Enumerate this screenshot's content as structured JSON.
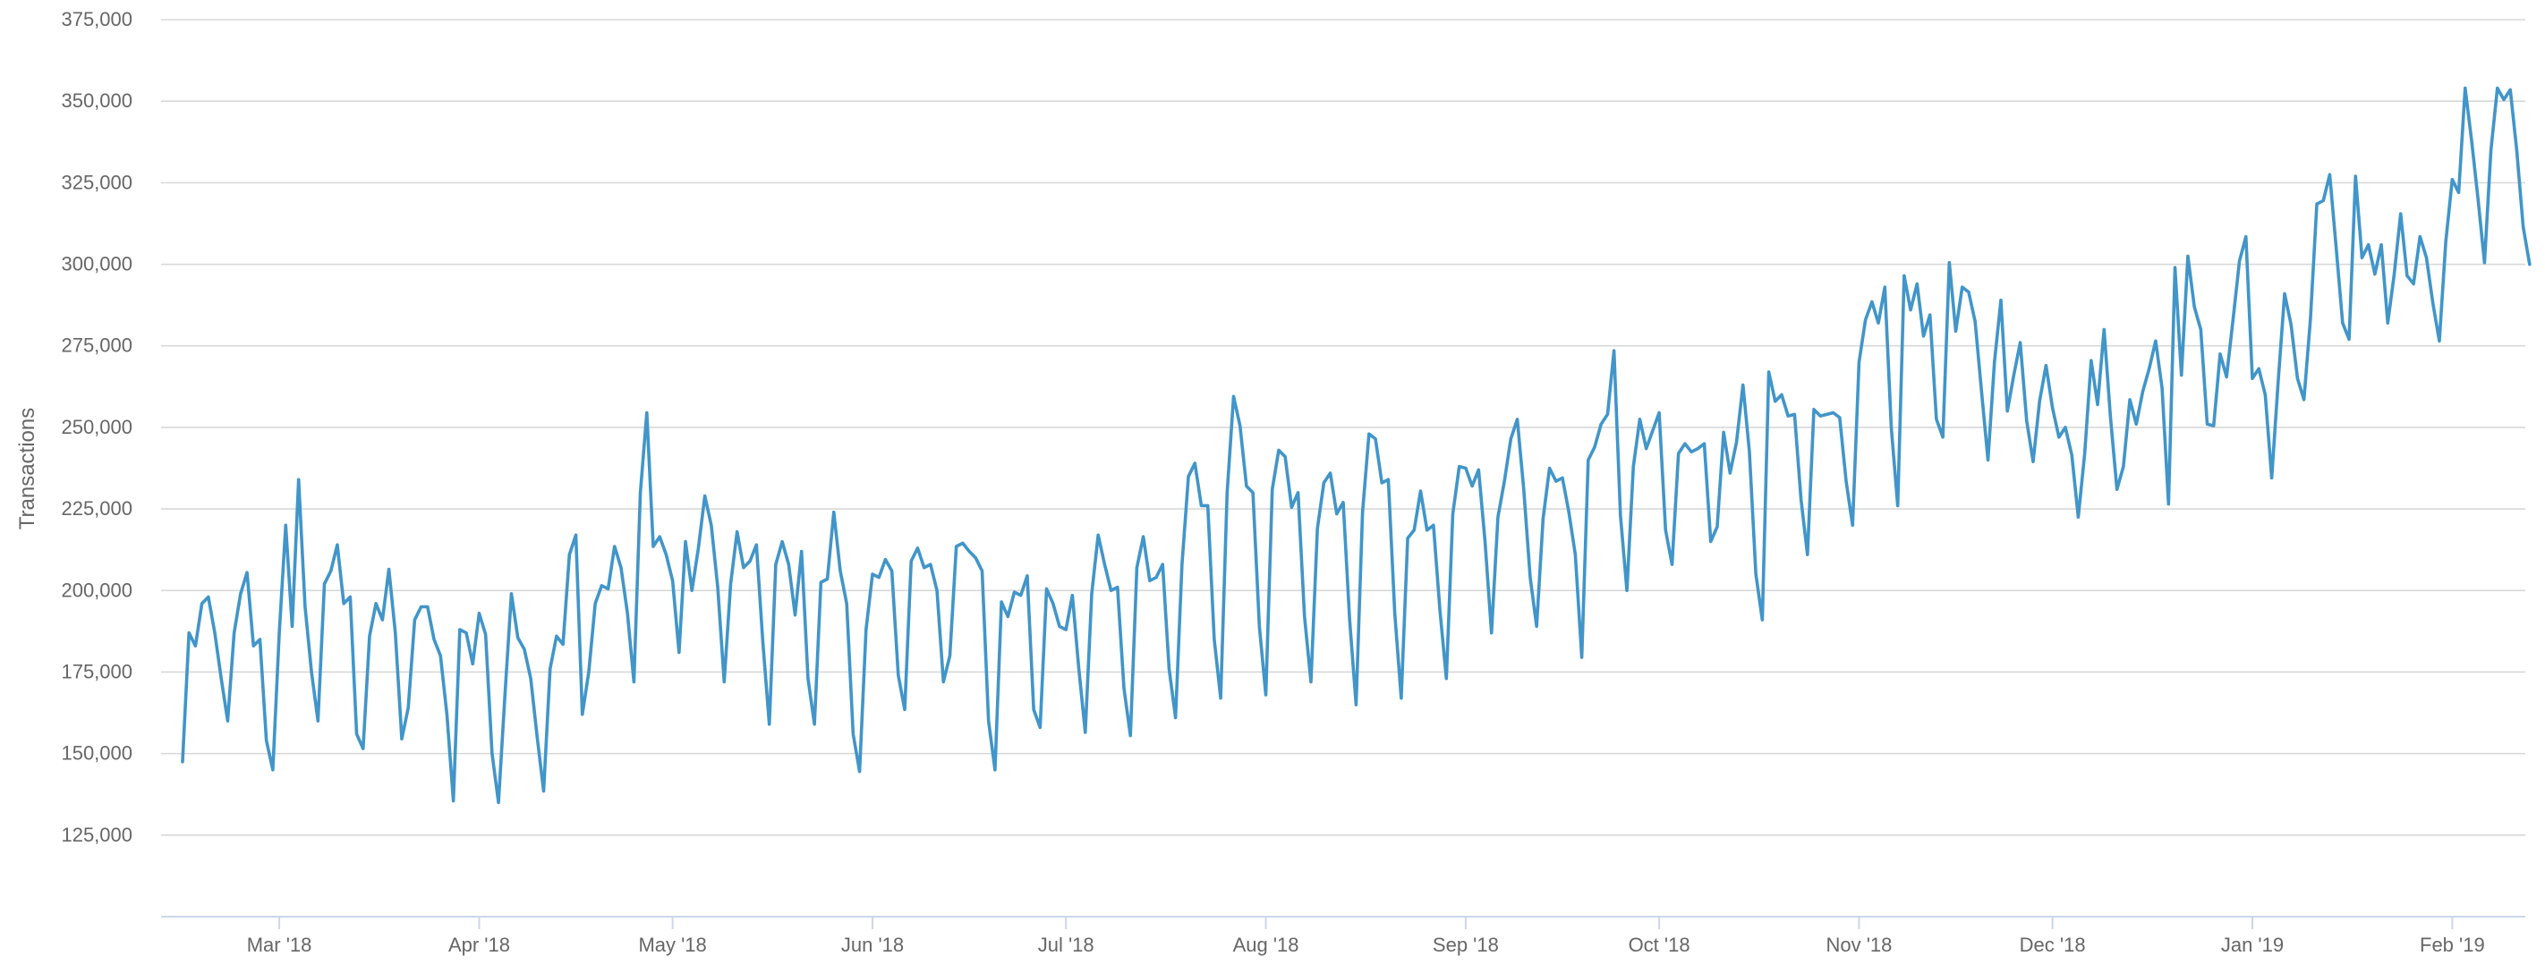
{
  "chart_data": {
    "type": "line",
    "ylabel": "Transactions",
    "xlabel": "",
    "ylim": [
      100000,
      375000
    ],
    "x_start": "2018-02-14",
    "x_end": "2019-02-09",
    "grid": true,
    "legend": "none",
    "y_ticks": [
      125000,
      150000,
      175000,
      200000,
      225000,
      250000,
      275000,
      300000,
      325000,
      350000,
      375000
    ],
    "y_tick_labels": [
      "125,000",
      "150,000",
      "175,000",
      "200,000",
      "225,000",
      "250,000",
      "275,000",
      "300,000",
      "325,000",
      "350,000",
      "375,000"
    ],
    "x_ticks": [
      "2018-03-01",
      "2018-04-01",
      "2018-05-01",
      "2018-06-01",
      "2018-07-01",
      "2018-08-01",
      "2018-09-01",
      "2018-10-01",
      "2018-11-01",
      "2018-12-01",
      "2019-01-01",
      "2019-02-01"
    ],
    "x_tick_labels": [
      "Mar '18",
      "Apr '18",
      "May '18",
      "Jun '18",
      "Jul '18",
      "Aug '18",
      "Sep '18",
      "Oct '18",
      "Nov '18",
      "Dec '18",
      "Jan '19",
      "Feb '19"
    ],
    "colors": {
      "series": "#4195c9"
    },
    "series": [
      {
        "values": [
          147500,
          187000,
          183000,
          196000,
          198000,
          187000,
          173000,
          160000,
          187000,
          199000,
          205500,
          183000,
          185000,
          154000,
          145000,
          187000,
          220000,
          189000,
          234000,
          195000,
          175000,
          160000,
          202000,
          206000,
          214000,
          196000,
          198000,
          156000,
          151500,
          186000,
          196000,
          191000,
          206500,
          187000,
          154500,
          164000,
          191000,
          195000,
          195000,
          185000,
          180000,
          162000,
          135500,
          188000,
          187000,
          177500,
          193000,
          186500,
          150000,
          135000,
          168000,
          199000,
          185500,
          182000,
          173000,
          155000,
          138500,
          176000,
          186000,
          183500,
          211000,
          217000,
          162000,
          175000,
          196000,
          201500,
          200500,
          213500,
          207000,
          193000,
          172000,
          230000,
          254500,
          213500,
          216500,
          211000,
          203000,
          181000,
          215000,
          200000,
          213000,
          229000,
          220000,
          201000,
          172000,
          202000,
          218000,
          207000,
          209000,
          214000,
          184000,
          159000,
          208000,
          215000,
          208000,
          192500,
          212000,
          173000,
          159000,
          202500,
          203500,
          224000,
          206000,
          196000,
          156000,
          144500,
          188000,
          205000,
          204000,
          209500,
          206000,
          174000,
          163500,
          209000,
          213000,
          207000,
          208000,
          200000,
          172000,
          180000,
          213500,
          214500,
          212000,
          210000,
          206000,
          160000,
          145000,
          196500,
          192000,
          199500,
          198500,
          204500,
          163500,
          158000,
          200500,
          196000,
          189000,
          188000,
          198500,
          176000,
          156500,
          199000,
          217000,
          208000,
          200000,
          201000,
          170000,
          155500,
          207000,
          216500,
          203000,
          204000,
          208000,
          176000,
          161000,
          208000,
          235000,
          239000,
          226000,
          226000,
          185000,
          167000,
          230000,
          259500,
          250500,
          232000,
          230000,
          189000,
          168000,
          231000,
          243000,
          241000,
          225500,
          230000,
          192000,
          172000,
          219000,
          233000,
          236000,
          223500,
          227000,
          191000,
          165000,
          224000,
          248000,
          246500,
          233000,
          234000,
          193000,
          167000,
          216000,
          218500,
          230500,
          218500,
          220000,
          194000,
          173000,
          223500,
          238000,
          237500,
          232000,
          237000,
          215000,
          187000,
          222500,
          233500,
          246500,
          252500,
          231000,
          204000,
          189000,
          222000,
          237500,
          233500,
          234500,
          224000,
          211000,
          179500,
          240000,
          244000,
          251000,
          254000,
          273500,
          223000,
          200000,
          238000,
          252500,
          243500,
          249000,
          254500,
          218500,
          208000,
          242000,
          245000,
          242500,
          243500,
          245000,
          215000,
          219500,
          248500,
          236000,
          245500,
          263000,
          242500,
          205000,
          191000,
          267000,
          258000,
          260000,
          253500,
          254000,
          228000,
          211000,
          255500,
          253500,
          254000,
          254500,
          253000,
          233500,
          220000,
          270000,
          283000,
          288500,
          282000,
          293000,
          250000,
          226000,
          296500,
          286000,
          294000,
          278000,
          284500,
          252500,
          247000,
          300500,
          279500,
          293000,
          291500,
          282500,
          261000,
          240000,
          270000,
          289000,
          255000,
          266000,
          276000,
          252000,
          239500,
          258000,
          269000,
          256000,
          247000,
          250000,
          241500,
          222500,
          242000,
          270500,
          257000,
          280000,
          253000,
          231000,
          238000,
          258500,
          251000,
          261000,
          268000,
          276500,
          262000,
          226500,
          299000,
          266000,
          302500,
          287000,
          280000,
          251000,
          250500,
          272500,
          265500,
          283000,
          301000,
          308500,
          265000,
          268000,
          260000,
          234500,
          264000,
          291000,
          281500,
          265000,
          258500,
          283000,
          318500,
          319500,
          327500,
          305000,
          282000,
          277000,
          327000,
          302000,
          306000,
          297000,
          306000,
          282000,
          297000,
          315500,
          296500,
          294000,
          308500,
          302000,
          288000,
          276500,
          307000,
          326000,
          322000,
          354000,
          338000,
          320000,
          300500,
          335000,
          354000,
          350500,
          353500,
          335000,
          311500,
          300000
        ]
      }
    ]
  }
}
